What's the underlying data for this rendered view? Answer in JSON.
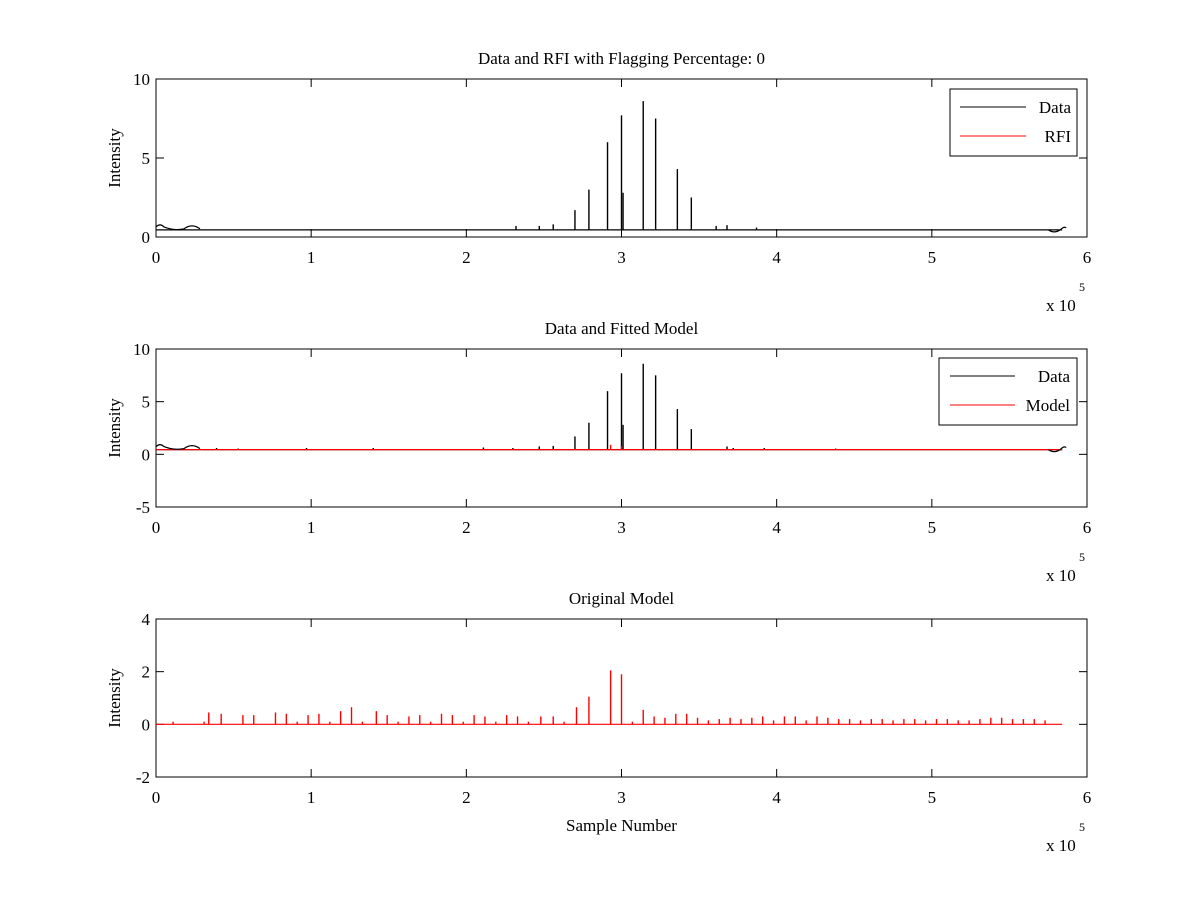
{
  "chart_data": [
    {
      "type": "line",
      "title": "Data and RFI with Flagging Percentage: 0",
      "xlabel": "",
      "ylabel": "Intensity",
      "xlim": [
        0,
        600000
      ],
      "ylim": [
        0,
        10
      ],
      "xticks": [
        0,
        1,
        2,
        3,
        4,
        5,
        6
      ],
      "yticks": [
        0,
        5,
        10
      ],
      "x_exponent_base": "x 10",
      "x_exponent_power": "5",
      "grid": false,
      "legend_position": "top-right",
      "baseline": 0.45,
      "series": [
        {
          "name": "Data",
          "color": "#000000",
          "spikes": [
            {
              "x": 270000,
              "y": 1.7
            },
            {
              "x": 279000,
              "y": 3.0
            },
            {
              "x": 291000,
              "y": 6.0
            },
            {
              "x": 300000,
              "y": 7.7
            },
            {
              "x": 301000,
              "y": 2.8
            },
            {
              "x": 314000,
              "y": 8.6
            },
            {
              "x": 322000,
              "y": 7.5
            },
            {
              "x": 336000,
              "y": 4.3
            },
            {
              "x": 345000,
              "y": 2.5
            },
            {
              "x": 232000,
              "y": 0.7
            },
            {
              "x": 247000,
              "y": 0.7
            },
            {
              "x": 256000,
              "y": 0.8
            },
            {
              "x": 361000,
              "y": 0.7
            },
            {
              "x": 368000,
              "y": 0.75
            },
            {
              "x": 387000,
              "y": 0.6
            }
          ]
        },
        {
          "name": "RFI",
          "color": "#ff0000",
          "spikes": []
        }
      ]
    },
    {
      "type": "line",
      "title": "Data and Fitted Model",
      "xlabel": "",
      "ylabel": "Intensity",
      "xlim": [
        0,
        600000
      ],
      "ylim": [
        -5,
        10
      ],
      "xticks": [
        0,
        1,
        2,
        3,
        4,
        5,
        6
      ],
      "yticks": [
        -5,
        0,
        5,
        10
      ],
      "x_exponent_base": "x 10",
      "x_exponent_power": "5",
      "grid": false,
      "legend_position": "top-right",
      "baseline": 0.45,
      "series": [
        {
          "name": "Data",
          "color": "#000000",
          "spikes": [
            {
              "x": 270000,
              "y": 1.7
            },
            {
              "x": 279000,
              "y": 3.0
            },
            {
              "x": 291000,
              "y": 6.0
            },
            {
              "x": 300000,
              "y": 7.7
            },
            {
              "x": 301000,
              "y": 2.8
            },
            {
              "x": 314000,
              "y": 8.6
            },
            {
              "x": 322000,
              "y": 7.5
            },
            {
              "x": 336000,
              "y": 4.3
            },
            {
              "x": 345000,
              "y": 2.4
            },
            {
              "x": 247000,
              "y": 0.75
            },
            {
              "x": 256000,
              "y": 0.8
            },
            {
              "x": 368000,
              "y": 0.75
            },
            {
              "x": 39000,
              "y": 0.6
            },
            {
              "x": 53000,
              "y": 0.55
            },
            {
              "x": 97000,
              "y": 0.6
            },
            {
              "x": 140000,
              "y": 0.6
            },
            {
              "x": 211000,
              "y": 0.65
            },
            {
              "x": 230000,
              "y": 0.6
            },
            {
              "x": 372000,
              "y": 0.6
            },
            {
              "x": 392000,
              "y": 0.6
            },
            {
              "x": 438000,
              "y": 0.55
            }
          ]
        },
        {
          "name": "Model",
          "color": "#ff0000",
          "spikes": [
            {
              "x": 293000,
              "y": 0.9
            },
            {
              "x": 300000,
              "y": 0.8
            }
          ]
        }
      ]
    },
    {
      "type": "line",
      "title": "Original Model",
      "xlabel": "Sample Number",
      "ylabel": "Intensity",
      "xlim": [
        0,
        600000
      ],
      "ylim": [
        -2,
        4
      ],
      "xticks": [
        0,
        1,
        2,
        3,
        4,
        5,
        6
      ],
      "yticks": [
        -2,
        0,
        2,
        4
      ],
      "x_exponent_base": "x 10",
      "x_exponent_power": "5",
      "grid": false,
      "legend_position": "none",
      "baseline": 0.0,
      "series": [
        {
          "name": "",
          "color": "#ff0000",
          "spikes": [
            {
              "x": 11000,
              "y": 0.1
            },
            {
              "x": 31000,
              "y": 0.1
            },
            {
              "x": 34000,
              "y": 0.45
            },
            {
              "x": 42000,
              "y": 0.4
            },
            {
              "x": 56000,
              "y": 0.35
            },
            {
              "x": 63000,
              "y": 0.35
            },
            {
              "x": 77000,
              "y": 0.45
            },
            {
              "x": 84000,
              "y": 0.4
            },
            {
              "x": 91000,
              "y": 0.1
            },
            {
              "x": 98000,
              "y": 0.35
            },
            {
              "x": 105000,
              "y": 0.4
            },
            {
              "x": 112000,
              "y": 0.1
            },
            {
              "x": 119000,
              "y": 0.5
            },
            {
              "x": 126000,
              "y": 0.65
            },
            {
              "x": 133000,
              "y": 0.1
            },
            {
              "x": 142000,
              "y": 0.5
            },
            {
              "x": 149000,
              "y": 0.35
            },
            {
              "x": 156000,
              "y": 0.1
            },
            {
              "x": 163000,
              "y": 0.3
            },
            {
              "x": 170000,
              "y": 0.35
            },
            {
              "x": 177000,
              "y": 0.1
            },
            {
              "x": 184000,
              "y": 0.4
            },
            {
              "x": 191000,
              "y": 0.35
            },
            {
              "x": 198000,
              "y": 0.1
            },
            {
              "x": 205000,
              "y": 0.35
            },
            {
              "x": 212000,
              "y": 0.3
            },
            {
              "x": 219000,
              "y": 0.1
            },
            {
              "x": 226000,
              "y": 0.35
            },
            {
              "x": 233000,
              "y": 0.3
            },
            {
              "x": 240000,
              "y": 0.1
            },
            {
              "x": 248000,
              "y": 0.3
            },
            {
              "x": 256000,
              "y": 0.3
            },
            {
              "x": 263000,
              "y": 0.1
            },
            {
              "x": 271000,
              "y": 0.65
            },
            {
              "x": 279000,
              "y": 1.05
            },
            {
              "x": 293000,
              "y": 2.05
            },
            {
              "x": 300000,
              "y": 1.9
            },
            {
              "x": 307000,
              "y": 0.1
            },
            {
              "x": 314000,
              "y": 0.55
            },
            {
              "x": 321000,
              "y": 0.3
            },
            {
              "x": 328000,
              "y": 0.25
            },
            {
              "x": 335000,
              "y": 0.4
            },
            {
              "x": 342000,
              "y": 0.4
            },
            {
              "x": 349000,
              "y": 0.25
            },
            {
              "x": 356000,
              "y": 0.15
            },
            {
              "x": 363000,
              "y": 0.2
            },
            {
              "x": 370000,
              "y": 0.25
            },
            {
              "x": 377000,
              "y": 0.2
            },
            {
              "x": 384000,
              "y": 0.25
            },
            {
              "x": 391000,
              "y": 0.3
            },
            {
              "x": 398000,
              "y": 0.15
            },
            {
              "x": 405000,
              "y": 0.3
            },
            {
              "x": 412000,
              "y": 0.3
            },
            {
              "x": 419000,
              "y": 0.15
            },
            {
              "x": 426000,
              "y": 0.3
            },
            {
              "x": 433000,
              "y": 0.25
            },
            {
              "x": 440000,
              "y": 0.2
            },
            {
              "x": 447000,
              "y": 0.2
            },
            {
              "x": 454000,
              "y": 0.15
            },
            {
              "x": 461000,
              "y": 0.2
            },
            {
              "x": 468000,
              "y": 0.2
            },
            {
              "x": 475000,
              "y": 0.15
            },
            {
              "x": 482000,
              "y": 0.2
            },
            {
              "x": 489000,
              "y": 0.2
            },
            {
              "x": 496000,
              "y": 0.15
            },
            {
              "x": 503000,
              "y": 0.2
            },
            {
              "x": 510000,
              "y": 0.2
            },
            {
              "x": 517000,
              "y": 0.15
            },
            {
              "x": 524000,
              "y": 0.15
            },
            {
              "x": 531000,
              "y": 0.2
            },
            {
              "x": 538000,
              "y": 0.25
            },
            {
              "x": 545000,
              "y": 0.25
            },
            {
              "x": 552000,
              "y": 0.2
            },
            {
              "x": 559000,
              "y": 0.2
            },
            {
              "x": 566000,
              "y": 0.2
            },
            {
              "x": 573000,
              "y": 0.15
            }
          ]
        }
      ]
    }
  ]
}
